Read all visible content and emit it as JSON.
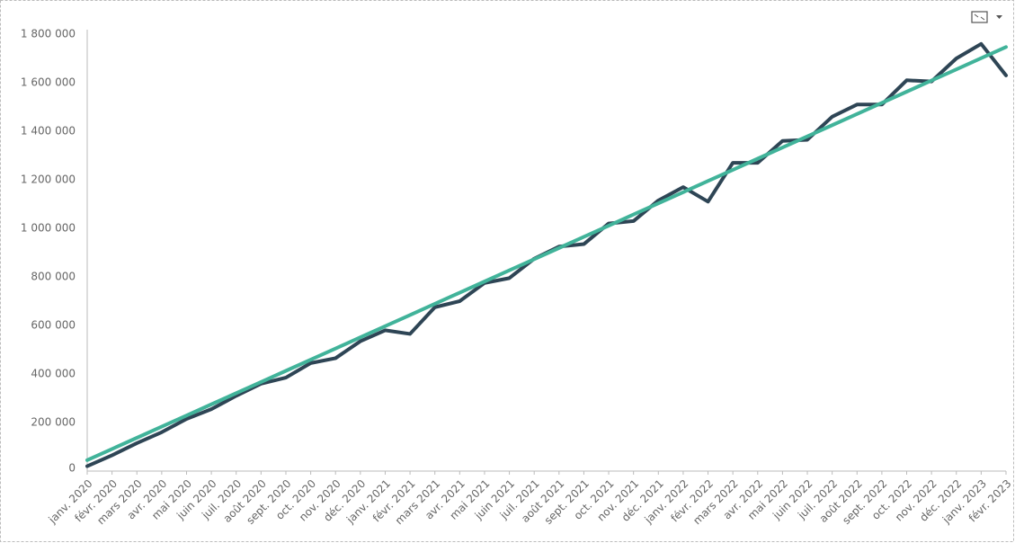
{
  "chart_data": {
    "type": "line",
    "categories": [
      "janv. 2020",
      "févr. 2020",
      "mars 2020",
      "avr. 2020",
      "mai 2020",
      "juin 2020",
      "juil. 2020",
      "août 2020",
      "sept. 2020",
      "oct. 2020",
      "nov. 2020",
      "déc. 2020",
      "janv. 2021",
      "févr. 2021",
      "mars 2021",
      "avr. 2021",
      "mai 2021",
      "juin 2021",
      "juil. 2021",
      "août 2021",
      "sept. 2021",
      "oct. 2021",
      "nov. 2021",
      "déc. 2021",
      "janv. 2022",
      "févr. 2022",
      "mars 2022",
      "avr. 2022",
      "mai 2022",
      "juin 2022",
      "juil. 2022",
      "août 2022",
      "sept. 2022",
      "oct. 2022",
      "nov. 2022",
      "déc. 2022",
      "janv. 2023",
      "févr. 2023"
    ],
    "series": [
      {
        "color": "#2e4555",
        "values": [
          20000,
          65000,
          115000,
          160000,
          215000,
          255000,
          310000,
          360000,
          385000,
          445000,
          465000,
          535000,
          580000,
          565000,
          675000,
          700000,
          775000,
          795000,
          875000,
          925000,
          935000,
          1020000,
          1030000,
          1115000,
          1170000,
          1110000,
          1270000,
          1270000,
          1360000,
          1365000,
          1460000,
          1510000,
          1510000,
          1610000,
          1605000,
          1700000,
          1760000,
          1630000
        ]
      },
      {
        "color": "#41b39a",
        "values": [
          45000,
          91000,
          137000,
          183000,
          229000,
          275000,
          321000,
          367000,
          413000,
          459000,
          505000,
          551000,
          597000,
          643000,
          689000,
          735000,
          781000,
          827000,
          873000,
          919000,
          965000,
          1011000,
          1057000,
          1103000,
          1149000,
          1195000,
          1241000,
          1287000,
          1333000,
          1379000,
          1425000,
          1471000,
          1517000,
          1563000,
          1609000,
          1655000,
          1701000,
          1747000
        ]
      }
    ],
    "ylim": [
      0,
      1800000
    ],
    "yticks": [
      0,
      {
        "value": 200000,
        "label": "200 000"
      },
      {
        "value": 400000,
        "label": "400 000"
      },
      {
        "value": 600000,
        "label": "600 000"
      },
      {
        "value": 800000,
        "label": "800 000"
      },
      {
        "value": 1000000,
        "label": "1 000 000"
      },
      {
        "value": 1200000,
        "label": "1 200 000"
      },
      {
        "value": 1400000,
        "label": "1 400 000"
      },
      {
        "value": 1600000,
        "label": "1 600 000"
      },
      {
        "value": 1800000,
        "label": "1 800 000"
      }
    ],
    "grid": false
  }
}
